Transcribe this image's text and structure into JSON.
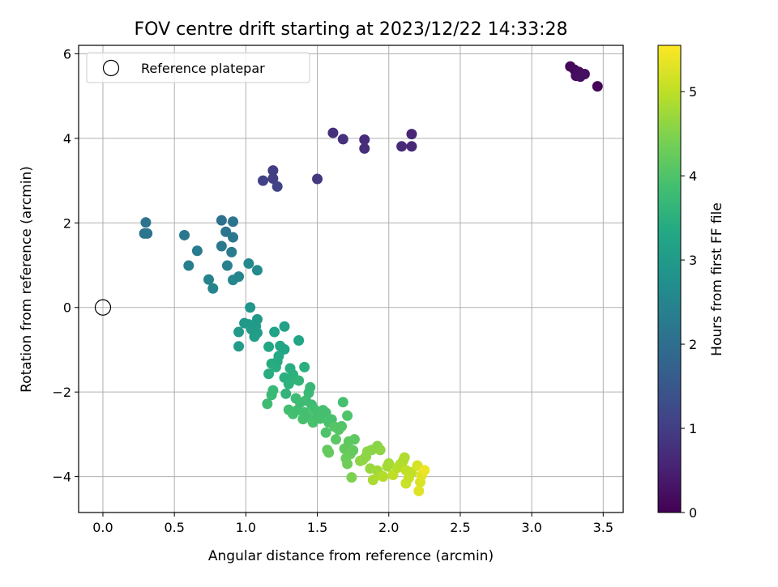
{
  "chart_data": {
    "type": "scatter",
    "title": "FOV centre drift starting at 2023/12/22 14:33:28",
    "xlabel": "Angular distance from reference (arcmin)",
    "ylabel": "Rotation from reference (arcmin)",
    "xlim": [
      -0.17,
      3.64
    ],
    "ylim": [
      -4.85,
      6.2
    ],
    "xticks": [
      0.0,
      0.5,
      1.0,
      1.5,
      2.0,
      2.5,
      3.0,
      3.5
    ],
    "xtick_labels": [
      "0.0",
      "0.5",
      "1.0",
      "1.5",
      "2.0",
      "2.5",
      "3.0",
      "3.5"
    ],
    "yticks": [
      -4,
      -2,
      0,
      2,
      4,
      6
    ],
    "ytick_labels": [
      "−4",
      "−2",
      "0",
      "2",
      "4",
      "6"
    ],
    "grid": true,
    "legend": {
      "placement": "top-left",
      "entries": [
        "Reference platepar"
      ]
    },
    "reference_point": {
      "name": "Reference platepar",
      "x": 0.0,
      "y": 0.0
    },
    "colorbar": {
      "label": "Hours from first FF file",
      "colormap": "viridis",
      "range": [
        0,
        5.55
      ],
      "ticks": [
        0,
        1,
        2,
        3,
        4,
        5
      ],
      "tick_labels": [
        "0",
        "1",
        "2",
        "3",
        "4",
        "5"
      ]
    },
    "points": [
      {
        "x": 3.27,
        "y": 5.7,
        "c": 0.1
      },
      {
        "x": 3.3,
        "y": 5.62,
        "c": 0.13
      },
      {
        "x": 3.31,
        "y": 5.48,
        "c": 0.16
      },
      {
        "x": 3.33,
        "y": 5.57,
        "c": 0.18
      },
      {
        "x": 3.34,
        "y": 5.46,
        "c": 0.2
      },
      {
        "x": 3.37,
        "y": 5.52,
        "c": 0.23
      },
      {
        "x": 3.46,
        "y": 5.23,
        "c": 0.05
      },
      {
        "x": 1.61,
        "y": 4.13,
        "c": 0.75
      },
      {
        "x": 1.68,
        "y": 3.98,
        "c": 0.78
      },
      {
        "x": 1.83,
        "y": 3.97,
        "c": 0.7
      },
      {
        "x": 1.83,
        "y": 3.76,
        "c": 0.72
      },
      {
        "x": 2.09,
        "y": 3.81,
        "c": 0.65
      },
      {
        "x": 2.16,
        "y": 3.81,
        "c": 0.62
      },
      {
        "x": 2.16,
        "y": 4.1,
        "c": 0.6
      },
      {
        "x": 1.12,
        "y": 3.0,
        "c": 1.05
      },
      {
        "x": 1.19,
        "y": 3.24,
        "c": 1.0
      },
      {
        "x": 1.19,
        "y": 3.05,
        "c": 1.02
      },
      {
        "x": 1.22,
        "y": 2.86,
        "c": 1.1
      },
      {
        "x": 1.5,
        "y": 3.04,
        "c": 0.9
      },
      {
        "x": 0.3,
        "y": 2.01,
        "c": 2.1
      },
      {
        "x": 0.29,
        "y": 1.75,
        "c": 2.12
      },
      {
        "x": 0.31,
        "y": 1.75,
        "c": 2.15
      },
      {
        "x": 0.57,
        "y": 1.71,
        "c": 2.2
      },
      {
        "x": 0.6,
        "y": 0.99,
        "c": 2.35
      },
      {
        "x": 0.66,
        "y": 1.34,
        "c": 2.3
      },
      {
        "x": 0.74,
        "y": 0.66,
        "c": 2.45
      },
      {
        "x": 0.77,
        "y": 0.45,
        "c": 2.5
      },
      {
        "x": 0.83,
        "y": 2.06,
        "c": 2.05
      },
      {
        "x": 0.83,
        "y": 1.45,
        "c": 2.25
      },
      {
        "x": 0.86,
        "y": 1.79,
        "c": 2.15
      },
      {
        "x": 0.87,
        "y": 0.99,
        "c": 2.4
      },
      {
        "x": 0.91,
        "y": 2.03,
        "c": 2.1
      },
      {
        "x": 0.9,
        "y": 1.31,
        "c": 2.3
      },
      {
        "x": 0.91,
        "y": 1.66,
        "c": 2.2
      },
      {
        "x": 0.91,
        "y": 0.65,
        "c": 2.55
      },
      {
        "x": 0.95,
        "y": 0.73,
        "c": 2.5
      },
      {
        "x": 1.02,
        "y": 1.04,
        "c": 2.6
      },
      {
        "x": 1.08,
        "y": 0.88,
        "c": 2.65
      },
      {
        "x": 1.03,
        "y": 0.0,
        "c": 2.9
      },
      {
        "x": 0.95,
        "y": -0.58,
        "c": 3.0
      },
      {
        "x": 0.95,
        "y": -0.92,
        "c": 3.05
      },
      {
        "x": 0.99,
        "y": -0.37,
        "c": 2.95
      },
      {
        "x": 1.02,
        "y": -0.4,
        "c": 3.0
      },
      {
        "x": 1.04,
        "y": -0.52,
        "c": 3.05
      },
      {
        "x": 1.06,
        "y": -0.69,
        "c": 3.1
      },
      {
        "x": 1.07,
        "y": -0.44,
        "c": 3.02
      },
      {
        "x": 1.08,
        "y": -0.28,
        "c": 2.98
      },
      {
        "x": 1.08,
        "y": -0.6,
        "c": 3.08
      },
      {
        "x": 1.16,
        "y": -0.93,
        "c": 3.3
      },
      {
        "x": 1.16,
        "y": -1.57,
        "c": 3.45
      },
      {
        "x": 1.18,
        "y": -1.33,
        "c": 3.4
      },
      {
        "x": 1.2,
        "y": -0.58,
        "c": 3.2
      },
      {
        "x": 1.21,
        "y": -1.41,
        "c": 3.45
      },
      {
        "x": 1.22,
        "y": -1.28,
        "c": 3.4
      },
      {
        "x": 1.23,
        "y": -1.15,
        "c": 3.35
      },
      {
        "x": 1.24,
        "y": -0.91,
        "c": 3.3
      },
      {
        "x": 1.27,
        "y": -0.45,
        "c": 3.15
      },
      {
        "x": 1.27,
        "y": -0.99,
        "c": 3.28
      },
      {
        "x": 1.27,
        "y": -1.66,
        "c": 3.5
      },
      {
        "x": 1.28,
        "y": -2.04,
        "c": 3.6
      },
      {
        "x": 1.3,
        "y": -1.81,
        "c": 3.55
      },
      {
        "x": 1.31,
        "y": -1.44,
        "c": 3.45
      },
      {
        "x": 1.33,
        "y": -1.59,
        "c": 3.5
      },
      {
        "x": 1.34,
        "y": -1.69,
        "c": 3.55
      },
      {
        "x": 1.37,
        "y": -0.78,
        "c": 3.25
      },
      {
        "x": 1.37,
        "y": -1.73,
        "c": 3.6
      },
      {
        "x": 1.41,
        "y": -1.41,
        "c": 3.5
      },
      {
        "x": 1.15,
        "y": -2.28,
        "c": 3.8
      },
      {
        "x": 1.18,
        "y": -2.07,
        "c": 3.75
      },
      {
        "x": 1.19,
        "y": -1.96,
        "c": 3.72
      },
      {
        "x": 1.3,
        "y": -2.42,
        "c": 3.85
      },
      {
        "x": 1.33,
        "y": -2.52,
        "c": 3.88
      },
      {
        "x": 1.35,
        "y": -2.15,
        "c": 3.78
      },
      {
        "x": 1.36,
        "y": -2.43,
        "c": 3.85
      },
      {
        "x": 1.38,
        "y": -2.25,
        "c": 3.8
      },
      {
        "x": 1.4,
        "y": -2.64,
        "c": 3.92
      },
      {
        "x": 1.41,
        "y": -2.48,
        "c": 3.88
      },
      {
        "x": 1.42,
        "y": -2.2,
        "c": 3.8
      },
      {
        "x": 1.43,
        "y": -2.59,
        "c": 3.9
      },
      {
        "x": 1.44,
        "y": -2.02,
        "c": 3.75
      },
      {
        "x": 1.45,
        "y": -1.89,
        "c": 3.7
      },
      {
        "x": 1.46,
        "y": -2.3,
        "c": 3.82
      },
      {
        "x": 1.47,
        "y": -2.72,
        "c": 3.95
      },
      {
        "x": 1.48,
        "y": -2.41,
        "c": 3.85
      },
      {
        "x": 1.5,
        "y": -2.56,
        "c": 3.9
      },
      {
        "x": 1.52,
        "y": -2.63,
        "c": 3.92
      },
      {
        "x": 1.54,
        "y": -2.43,
        "c": 3.88
      },
      {
        "x": 1.56,
        "y": -2.49,
        "c": 3.9
      },
      {
        "x": 1.56,
        "y": -2.96,
        "c": 4.0
      },
      {
        "x": 1.58,
        "y": -2.72,
        "c": 3.95
      },
      {
        "x": 1.6,
        "y": -2.65,
        "c": 3.93
      },
      {
        "x": 1.57,
        "y": -3.37,
        "c": 4.2
      },
      {
        "x": 1.58,
        "y": -3.43,
        "c": 4.22
      },
      {
        "x": 1.62,
        "y": -2.82,
        "c": 4.05
      },
      {
        "x": 1.63,
        "y": -3.12,
        "c": 4.12
      },
      {
        "x": 1.65,
        "y": -2.89,
        "c": 4.08
      },
      {
        "x": 1.67,
        "y": -2.81,
        "c": 4.05
      },
      {
        "x": 1.68,
        "y": -2.24,
        "c": 3.9
      },
      {
        "x": 1.69,
        "y": -3.34,
        "c": 4.2
      },
      {
        "x": 1.7,
        "y": -3.57,
        "c": 4.28
      },
      {
        "x": 1.71,
        "y": -2.56,
        "c": 4.0
      },
      {
        "x": 1.71,
        "y": -3.7,
        "c": 4.32
      },
      {
        "x": 1.72,
        "y": -3.17,
        "c": 4.15
      },
      {
        "x": 1.73,
        "y": -3.47,
        "c": 4.25
      },
      {
        "x": 1.74,
        "y": -4.02,
        "c": 4.45
      },
      {
        "x": 1.75,
        "y": -3.38,
        "c": 4.22
      },
      {
        "x": 1.76,
        "y": -3.12,
        "c": 4.15
      },
      {
        "x": 1.8,
        "y": -3.63,
        "c": 4.6
      },
      {
        "x": 1.82,
        "y": -3.6,
        "c": 4.62
      },
      {
        "x": 1.84,
        "y": -3.53,
        "c": 4.6
      },
      {
        "x": 1.85,
        "y": -3.41,
        "c": 4.58
      },
      {
        "x": 1.87,
        "y": -3.81,
        "c": 4.7
      },
      {
        "x": 1.88,
        "y": -3.37,
        "c": 4.58
      },
      {
        "x": 1.89,
        "y": -4.08,
        "c": 4.85
      },
      {
        "x": 1.92,
        "y": -3.28,
        "c": 4.55
      },
      {
        "x": 1.92,
        "y": -3.86,
        "c": 4.75
      },
      {
        "x": 1.94,
        "y": -3.37,
        "c": 4.6
      },
      {
        "x": 1.95,
        "y": -3.98,
        "c": 4.85
      },
      {
        "x": 1.96,
        "y": -4.0,
        "c": 4.9
      },
      {
        "x": 1.99,
        "y": -3.76,
        "c": 4.8
      },
      {
        "x": 2.0,
        "y": -3.69,
        "c": 4.78
      },
      {
        "x": 2.03,
        "y": -3.96,
        "c": 5.0
      },
      {
        "x": 2.06,
        "y": -3.79,
        "c": 4.95
      },
      {
        "x": 2.08,
        "y": -3.71,
        "c": 4.92
      },
      {
        "x": 2.1,
        "y": -3.63,
        "c": 4.9
      },
      {
        "x": 2.11,
        "y": -3.55,
        "c": 4.88
      },
      {
        "x": 2.12,
        "y": -3.85,
        "c": 5.0
      },
      {
        "x": 2.12,
        "y": -4.16,
        "c": 5.1
      },
      {
        "x": 2.14,
        "y": -4.03,
        "c": 5.08
      },
      {
        "x": 2.16,
        "y": -3.9,
        "c": 5.05
      },
      {
        "x": 2.2,
        "y": -3.74,
        "c": 5.2
      },
      {
        "x": 2.21,
        "y": -4.34,
        "c": 5.3
      },
      {
        "x": 2.22,
        "y": -4.13,
        "c": 5.25
      },
      {
        "x": 2.23,
        "y": -3.97,
        "c": 5.28
      },
      {
        "x": 2.25,
        "y": -3.85,
        "c": 5.4
      }
    ]
  }
}
